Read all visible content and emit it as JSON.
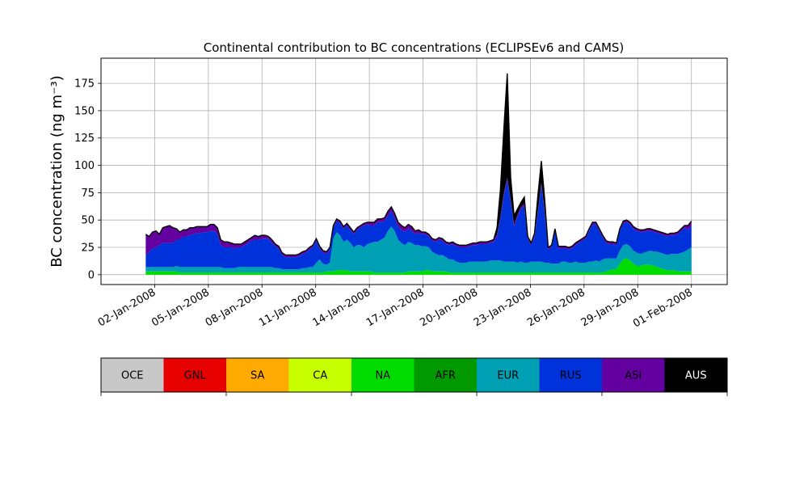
{
  "chart_data": {
    "type": "area",
    "stacked": true,
    "title": "Continental contribution to BC concentrations (ECLIPSEv6 and CAMS)",
    "ylabel": "BC concentration (ng m⁻³)",
    "xlabel": "",
    "ylim": [
      -9,
      198
    ],
    "xlim": [
      "2007-12-30",
      "2008-02-03"
    ],
    "x_start": "2008-01-01T12:00",
    "x_end": "2008-02-01",
    "grid": true,
    "yticks": [
      0,
      25,
      50,
      75,
      100,
      125,
      150,
      175
    ],
    "xticks": [
      {
        "date": "2008-01-02",
        "label": "02-Jan-2008"
      },
      {
        "date": "2008-01-05",
        "label": "05-Jan-2008"
      },
      {
        "date": "2008-01-08",
        "label": "08-Jan-2008"
      },
      {
        "date": "2008-01-11",
        "label": "11-Jan-2008"
      },
      {
        "date": "2008-01-14",
        "label": "14-Jan-2008"
      },
      {
        "date": "2008-01-17",
        "label": "17-Jan-2008"
      },
      {
        "date": "2008-01-20",
        "label": "20-Jan-2008"
      },
      {
        "date": "2008-01-23",
        "label": "23-Jan-2008"
      },
      {
        "date": "2008-01-26",
        "label": "26-Jan-2008"
      },
      {
        "date": "2008-01-29",
        "label": "29-Jan-2008"
      },
      {
        "date": "2008-02-01",
        "label": "01-Feb-2008"
      }
    ],
    "legend": {
      "placement": "bottom colorbar",
      "entries": [
        {
          "name": "OCE",
          "color": "#c8c8c8"
        },
        {
          "name": "GNL",
          "color": "#e60000"
        },
        {
          "name": "SA",
          "color": "#ffaa00"
        },
        {
          "name": "CA",
          "color": "#c8ff00"
        },
        {
          "name": "NA",
          "color": "#00dc00"
        },
        {
          "name": "AFR",
          "color": "#009900"
        },
        {
          "name": "EUR",
          "color": "#00a0b4"
        },
        {
          "name": "RUS",
          "color": "#0032dc"
        },
        {
          "name": "ASI",
          "color": "#6400a0"
        },
        {
          "name": "AUS",
          "color": "#000000"
        }
      ]
    },
    "series_colors": {
      "NA": "#00dc00",
      "EUR": "#00a0b4",
      "RUS": "#0032dc",
      "ASI": "#6400a0",
      "AUS": "#000000"
    },
    "series": [
      {
        "name": "NA",
        "values": [
          3,
          3,
          3,
          3,
          3,
          3,
          3,
          3,
          3,
          3,
          2,
          2,
          2,
          2,
          2,
          2,
          2,
          2,
          2,
          2,
          2,
          2,
          2,
          2,
          2,
          2,
          2,
          2,
          2,
          2,
          2,
          2,
          2,
          2,
          2,
          2,
          2,
          2,
          2,
          2,
          2,
          2,
          2,
          2,
          2,
          2,
          2,
          2,
          2,
          2,
          2,
          2,
          2,
          3,
          3,
          3,
          4,
          4,
          4,
          4,
          3,
          3,
          3,
          3,
          3,
          3,
          3,
          2,
          2,
          2,
          2,
          2,
          2,
          2,
          2,
          2,
          2,
          3,
          3,
          3,
          3,
          3,
          4,
          4,
          3,
          3,
          3,
          3,
          3,
          2,
          2,
          2,
          2,
          2,
          2,
          2,
          2,
          2,
          2,
          2,
          2,
          2,
          2,
          2,
          2,
          2,
          2,
          2,
          2,
          2,
          2,
          2,
          2,
          2,
          2,
          2,
          2,
          2,
          2,
          2,
          2,
          2,
          2,
          2,
          2,
          2,
          2,
          2,
          2,
          2,
          2,
          2,
          2,
          2,
          2,
          3,
          4,
          5,
          5,
          10,
          14,
          15,
          13,
          10,
          8,
          8,
          9,
          9,
          9,
          8,
          7,
          6,
          5,
          4,
          4,
          4,
          3,
          3,
          3,
          3,
          3
        ]
      },
      {
        "name": "EUR",
        "values": [
          4,
          4,
          4,
          4,
          4,
          4,
          4,
          4,
          4,
          5,
          5,
          5,
          5,
          5,
          5,
          5,
          5,
          5,
          5,
          5,
          5,
          5,
          5,
          4,
          4,
          4,
          4,
          5,
          5,
          5,
          5,
          5,
          5,
          5,
          5,
          5,
          5,
          5,
          4,
          4,
          3,
          3,
          3,
          3,
          3,
          3,
          4,
          4,
          5,
          5,
          9,
          12,
          8,
          6,
          8,
          30,
          35,
          32,
          26,
          28,
          26,
          22,
          24,
          24,
          22,
          25,
          26,
          28,
          28,
          30,
          32,
          38,
          42,
          38,
          30,
          27,
          25,
          27,
          26,
          24,
          24,
          23,
          22,
          21,
          18,
          16,
          15,
          15,
          13,
          12,
          12,
          10,
          9,
          9,
          9,
          10,
          10,
          10,
          10,
          10,
          10,
          11,
          11,
          11,
          11,
          10,
          10,
          10,
          10,
          9,
          10,
          9,
          9,
          10,
          10,
          10,
          10,
          9,
          9,
          8,
          8,
          8,
          10,
          10,
          9,
          9,
          10,
          9,
          9,
          9,
          10,
          10,
          11,
          10,
          12,
          12,
          11,
          10,
          10,
          12,
          13,
          13,
          13,
          12,
          12,
          11,
          11,
          12,
          13,
          13,
          14,
          14,
          14,
          14,
          15,
          15,
          16,
          17,
          18,
          20,
          22
        ]
      },
      {
        "name": "RUS",
        "values": [
          10,
          14,
          17,
          18,
          20,
          22,
          22,
          22,
          22,
          24,
          25,
          28,
          28,
          29,
          30,
          31,
          31,
          32,
          32,
          33,
          33,
          30,
          20,
          19,
          19,
          19,
          18,
          18,
          18,
          20,
          22,
          24,
          25,
          25,
          26,
          26,
          26,
          22,
          20,
          18,
          13,
          11,
          11,
          11,
          11,
          12,
          13,
          14,
          16,
          18,
          20,
          10,
          10,
          10,
          12,
          10,
          10,
          11,
          12,
          13,
          12,
          12,
          14,
          16,
          20,
          18,
          16,
          15,
          18,
          16,
          15,
          14,
          14,
          12,
          12,
          12,
          12,
          12,
          11,
          10,
          11,
          11,
          11,
          10,
          10,
          11,
          14,
          13,
          12,
          13,
          14,
          14,
          14,
          14,
          14,
          14,
          15,
          15,
          16,
          16,
          16,
          16,
          17,
          22,
          38,
          60,
          75,
          55,
          32,
          42,
          48,
          52,
          22,
          15,
          22,
          45,
          70,
          45,
          12,
          15,
          30,
          14,
          12,
          12,
          12,
          13,
          15,
          18,
          20,
          22,
          28,
          34,
          33,
          28,
          20,
          14,
          13,
          13,
          12,
          18,
          20,
          20,
          20,
          20,
          20,
          20,
          19,
          19,
          18,
          18,
          17,
          17,
          17,
          17,
          17,
          17,
          18,
          20,
          22,
          18,
          20
        ]
      },
      {
        "name": "ASI",
        "values": [
          20,
          14,
          15,
          15,
          10,
          14,
          15,
          16,
          14,
          10,
          7,
          6,
          6,
          7,
          6,
          6,
          6,
          5,
          5,
          6,
          6,
          6,
          5,
          5,
          5,
          4,
          4,
          3,
          3,
          3,
          3,
          3,
          4,
          3,
          3,
          3,
          2,
          3,
          2,
          2,
          2,
          2,
          2,
          2,
          2,
          2,
          2,
          2,
          2,
          2,
          2,
          2,
          2,
          2,
          2,
          2,
          2,
          2,
          2,
          2,
          2,
          2,
          2,
          2,
          2,
          2,
          3,
          3,
          3,
          3,
          3,
          4,
          4,
          4,
          4,
          4,
          4,
          4,
          4,
          3,
          3,
          2,
          2,
          2,
          2,
          2,
          2,
          2,
          2,
          2,
          2,
          2,
          2,
          2,
          2,
          2,
          2,
          2,
          2,
          2,
          2,
          2,
          2,
          2,
          2,
          3,
          2,
          2,
          2,
          2,
          2,
          2,
          2,
          2,
          2,
          2,
          2,
          2,
          2,
          2,
          2,
          2,
          2,
          2,
          2,
          2,
          2,
          2,
          2,
          2,
          2,
          2,
          2,
          2,
          2,
          2,
          2,
          2,
          2,
          2,
          2,
          2,
          2,
          2,
          2,
          2,
          2,
          2,
          2,
          2,
          2,
          2,
          2,
          2,
          2,
          2,
          2,
          2,
          2,
          4,
          4
        ]
      },
      {
        "name": "AUS",
        "values": [
          0,
          0,
          0,
          0,
          0,
          0,
          0,
          0,
          0,
          0,
          0,
          0,
          0,
          0,
          0,
          0,
          0,
          0,
          0,
          0,
          0,
          0,
          0,
          0,
          0,
          0,
          0,
          0,
          0,
          0,
          0,
          0,
          0,
          0,
          0,
          0,
          0,
          0,
          0,
          0,
          0,
          0,
          0,
          0,
          0,
          0,
          0,
          0,
          0,
          0,
          0,
          0,
          0,
          0,
          0,
          0,
          0,
          0,
          0,
          0,
          0,
          0,
          0,
          0,
          0,
          0,
          0,
          0,
          0,
          0,
          0,
          0,
          0,
          0,
          0,
          0,
          0,
          0,
          0,
          0,
          0,
          0,
          0,
          0,
          0,
          0,
          0,
          0,
          0,
          0,
          0,
          0,
          0,
          0,
          0,
          0,
          0,
          0,
          0,
          0,
          0,
          0,
          0,
          6,
          25,
          58,
          95,
          20,
          8,
          5,
          4,
          6,
          0,
          0,
          2,
          14,
          20,
          10,
          0,
          0,
          0,
          0,
          0,
          0,
          0,
          0,
          0,
          0,
          0,
          0,
          0,
          0,
          0,
          0,
          0,
          0,
          0,
          0,
          0,
          0,
          0,
          0,
          0,
          0,
          0,
          0,
          0,
          0,
          0,
          0,
          0,
          0,
          0,
          0,
          0,
          0,
          0,
          0,
          0,
          0,
          0
        ]
      }
    ]
  }
}
